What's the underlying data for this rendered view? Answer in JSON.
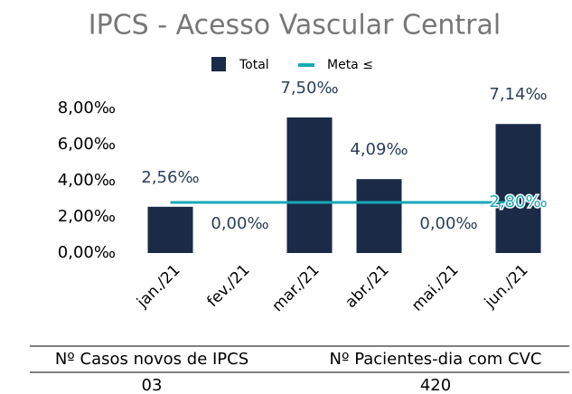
{
  "chart_data": {
    "type": "bar",
    "title": "IPCS - Acesso Vascular Central",
    "categories": [
      "jan./21",
      "fev./21",
      "mar./21",
      "abr./21",
      "mai./21",
      "jun./21"
    ],
    "series": [
      {
        "name": "Total",
        "color": "#1b2a47",
        "type": "bar",
        "values": [
          2.56,
          0,
          7.5,
          4.09,
          0,
          7.14
        ],
        "value_labels": [
          "2,56‰",
          "0,00‰",
          "7,50‰",
          "4,09‰",
          "0,00‰",
          "7,14‰"
        ]
      },
      {
        "name": "Meta ≤",
        "color": "#17a9b8",
        "type": "line",
        "values": [
          2.8,
          2.8,
          2.8,
          2.8,
          2.8,
          2.8
        ],
        "value_labels": [
          null,
          null,
          null,
          null,
          null,
          "2,80‰"
        ]
      }
    ],
    "ylim": [
      0,
      8
    ],
    "yticks": [
      {
        "value": 0,
        "label": "0,00‰"
      },
      {
        "value": 2,
        "label": "2,00‰"
      },
      {
        "value": 4,
        "label": "4,00‰"
      },
      {
        "value": 6,
        "label": "6,00‰"
      },
      {
        "value": 8,
        "label": "8,00‰"
      }
    ],
    "legend": "top"
  },
  "table": {
    "headers": [
      "Nº Casos novos de IPCS",
      "Nº Pacientes-dia com CVC"
    ],
    "rows": [
      [
        "03",
        "420"
      ]
    ]
  }
}
